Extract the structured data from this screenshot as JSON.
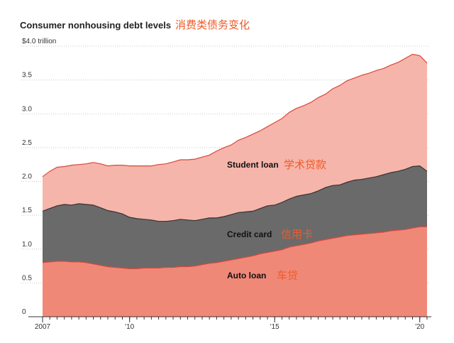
{
  "chart_data": {
    "type": "area",
    "stacked": true,
    "title": "Consumer nonhousing debt levels",
    "annotation_title": "消费类债务变化",
    "y_unit_label": "$4.0 trillion",
    "ylim": [
      0,
      4.0
    ],
    "xlim": [
      2007.0,
      2020.3
    ],
    "y_ticks": [
      {
        "value": 0,
        "label": "0"
      },
      {
        "value": 0.5,
        "label": "0.5"
      },
      {
        "value": 1.0,
        "label": "1.0"
      },
      {
        "value": 1.5,
        "label": "1.5"
      },
      {
        "value": 2.0,
        "label": "2.0"
      },
      {
        "value": 2.5,
        "label": "2.5"
      },
      {
        "value": 3.0,
        "label": "3.0"
      },
      {
        "value": 3.5,
        "label": "3.5"
      },
      {
        "value": 4.0,
        "label": "$4.0 trillion"
      }
    ],
    "x_ticks": [
      {
        "value": 2007,
        "label": "2007"
      },
      {
        "value": 2010,
        "label": "'10"
      },
      {
        "value": 2015,
        "label": "'15"
      },
      {
        "value": 2020,
        "label": "'20"
      }
    ],
    "x": [
      2007.0,
      2007.25,
      2007.5,
      2007.75,
      2008.0,
      2008.25,
      2008.5,
      2008.75,
      2009.0,
      2009.25,
      2009.5,
      2009.75,
      2010.0,
      2010.25,
      2010.5,
      2010.75,
      2011.0,
      2011.25,
      2011.5,
      2011.75,
      2012.0,
      2012.25,
      2012.5,
      2012.75,
      2013.0,
      2013.25,
      2013.5,
      2013.75,
      2014.0,
      2014.25,
      2014.5,
      2014.75,
      2015.0,
      2015.25,
      2015.5,
      2015.75,
      2016.0,
      2016.25,
      2016.5,
      2016.75,
      2017.0,
      2017.25,
      2017.5,
      2017.75,
      2018.0,
      2018.25,
      2018.5,
      2018.75,
      2019.0,
      2019.25,
      2019.5,
      2019.75,
      2020.0,
      2020.25
    ],
    "series": [
      {
        "name": "Auto loan",
        "annotation": "车贷",
        "color": "#f08878",
        "values": [
          0.8,
          0.81,
          0.82,
          0.82,
          0.81,
          0.81,
          0.8,
          0.78,
          0.76,
          0.74,
          0.73,
          0.72,
          0.71,
          0.71,
          0.72,
          0.72,
          0.72,
          0.73,
          0.73,
          0.74,
          0.74,
          0.75,
          0.77,
          0.79,
          0.8,
          0.82,
          0.84,
          0.86,
          0.88,
          0.9,
          0.93,
          0.95,
          0.97,
          0.99,
          1.03,
          1.05,
          1.07,
          1.09,
          1.12,
          1.14,
          1.16,
          1.18,
          1.2,
          1.21,
          1.22,
          1.23,
          1.24,
          1.25,
          1.27,
          1.28,
          1.29,
          1.31,
          1.33,
          1.33
        ]
      },
      {
        "name": "Credit card",
        "annotation": "信用卡",
        "color": "#6b6a6a",
        "values": [
          0.76,
          0.79,
          0.82,
          0.84,
          0.84,
          0.86,
          0.86,
          0.87,
          0.85,
          0.83,
          0.82,
          0.8,
          0.76,
          0.74,
          0.72,
          0.71,
          0.69,
          0.68,
          0.69,
          0.7,
          0.69,
          0.67,
          0.67,
          0.67,
          0.66,
          0.66,
          0.67,
          0.68,
          0.67,
          0.66,
          0.67,
          0.69,
          0.68,
          0.7,
          0.71,
          0.73,
          0.73,
          0.73,
          0.74,
          0.77,
          0.78,
          0.77,
          0.79,
          0.81,
          0.81,
          0.82,
          0.83,
          0.85,
          0.86,
          0.87,
          0.89,
          0.91,
          0.9,
          0.82
        ]
      },
      {
        "name": "Student loan",
        "annotation": "学术贷款",
        "color": "#f6b5aa",
        "values": [
          0.51,
          0.55,
          0.57,
          0.56,
          0.59,
          0.58,
          0.6,
          0.63,
          0.65,
          0.66,
          0.69,
          0.72,
          0.76,
          0.78,
          0.79,
          0.8,
          0.84,
          0.85,
          0.87,
          0.88,
          0.89,
          0.91,
          0.92,
          0.93,
          0.99,
          1.02,
          1.03,
          1.07,
          1.1,
          1.14,
          1.15,
          1.17,
          1.22,
          1.24,
          1.28,
          1.3,
          1.32,
          1.35,
          1.38,
          1.38,
          1.43,
          1.47,
          1.5,
          1.51,
          1.54,
          1.55,
          1.57,
          1.57,
          1.59,
          1.61,
          1.64,
          1.66,
          1.63,
          1.6
        ]
      }
    ]
  }
}
